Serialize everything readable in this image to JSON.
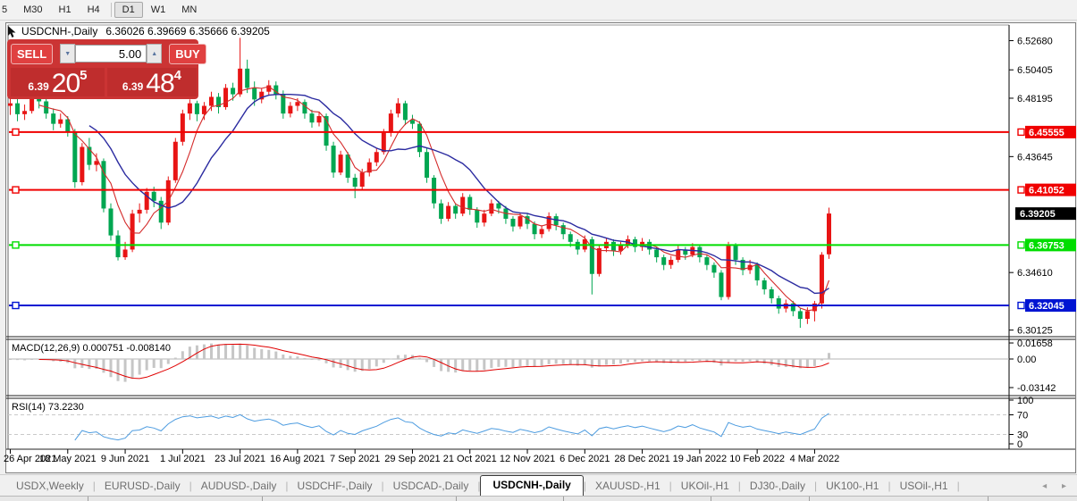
{
  "toolbar": {
    "timeframes": [
      "5",
      "M30",
      "H1",
      "H4",
      "D1",
      "W1",
      "MN"
    ],
    "active": "D1"
  },
  "chart": {
    "title": "USDCNH-,Daily",
    "ohlc_display": "6.36026 6.39669 6.35666 6.39205",
    "open": "6.36026",
    "high": "6.39669",
    "low": "6.35666",
    "close": "6.39205"
  },
  "trade_panel": {
    "sell_label": "SELL",
    "buy_label": "BUY",
    "volume": "5.00",
    "sell_price_prefix": "6.39",
    "sell_price_big": "20",
    "sell_price_sup": "5",
    "buy_price_prefix": "6.39",
    "buy_price_big": "48",
    "buy_price_sup": "4"
  },
  "icons": {
    "spinner_down": "▼",
    "spinner_up": "▲",
    "tab_scroll_left": "◂",
    "tab_scroll_right": "▸"
  },
  "colors": {
    "up": "#e81414",
    "down": "#00a651",
    "hline_red": "#f00000",
    "hline_green": "#00dd00",
    "hline_blue": "#0014d2",
    "current_tag": "#000000",
    "ma_fast": "#d42a2a",
    "ma_slow": "#2b2ba0",
    "macd_hist": "#c6c6c6",
    "macd_signal": "#e00000",
    "rsi": "#4d9ce0"
  },
  "chart_data": {
    "type": "candlestick",
    "symbol": "USDCNH-",
    "timeframe": "Daily",
    "price_range": {
      "top": 6.539,
      "bottom": 6.2968
    },
    "price_axis_ticks": [
      "6.52680",
      "6.50405",
      "6.48195",
      "6.43645",
      "6.34610",
      "6.30125"
    ],
    "x_labels": [
      "26 Apr 2021",
      "18 May 2021",
      "9 Jun 2021",
      "1 Jul 2021",
      "23 Jul 2021",
      "16 Aug 2021",
      "7 Sep 2021",
      "29 Sep 2021",
      "21 Oct 2021",
      "12 Nov 2021",
      "6 Dec 2021",
      "28 Dec 2021",
      "19 Jan 2022",
      "10 Feb 2022",
      "4 Mar 2022"
    ],
    "hlines": [
      {
        "price": "6.45555",
        "color_key": "hline_red"
      },
      {
        "price": "6.41052",
        "color_key": "hline_red"
      },
      {
        "price": "6.36753",
        "color_key": "hline_green"
      },
      {
        "price": "6.32045",
        "color_key": "hline_blue"
      }
    ],
    "current_price": "6.39205",
    "ma": [
      {
        "name": "ma-fast",
        "period": 5,
        "color_key": "ma_fast"
      },
      {
        "name": "ma-slow",
        "period": 12,
        "color_key": "ma_slow"
      }
    ],
    "macd": {
      "label": "MACD(12,26,9) 0.000751 -0.008140",
      "axis": [
        "0.01658",
        "0.00",
        "-0.03142"
      ],
      "axis_values": [
        0.01658,
        0,
        -0.03142
      ],
      "render_fast": 6,
      "render_slow": 13,
      "render_signal": 5
    },
    "rsi": {
      "label": "RSI(14) 73.2230",
      "axis": [
        "100",
        "70",
        "30",
        "0"
      ],
      "axis_values": [
        100,
        70,
        30,
        0
      ],
      "levels": [
        70,
        30
      ],
      "render_period": 9
    },
    "candles": [
      [
        6.476,
        6.4865,
        6.469,
        6.478
      ],
      [
        6.478,
        6.482,
        6.464,
        6.4695
      ],
      [
        6.4695,
        6.477,
        6.465,
        6.472
      ],
      [
        6.472,
        6.492,
        6.47,
        6.4838
      ],
      [
        6.4838,
        6.488,
        6.474,
        6.4795
      ],
      [
        6.4795,
        6.483,
        6.466,
        6.47
      ],
      [
        6.47,
        6.474,
        6.457,
        6.462
      ],
      [
        6.462,
        6.47,
        6.459,
        6.4655
      ],
      [
        6.4655,
        6.468,
        6.452,
        6.456
      ],
      [
        6.456,
        6.458,
        6.412,
        6.4165
      ],
      [
        6.4165,
        6.447,
        6.414,
        6.444
      ],
      [
        6.444,
        6.451,
        6.426,
        6.43
      ],
      [
        6.43,
        6.439,
        6.425,
        6.433
      ],
      [
        6.433,
        6.435,
        6.393,
        6.396
      ],
      [
        6.396,
        6.4,
        6.371,
        6.375
      ],
      [
        6.375,
        6.379,
        6.3555,
        6.358
      ],
      [
        6.358,
        6.37,
        6.356,
        6.364
      ],
      [
        6.364,
        6.395,
        6.362,
        6.392
      ],
      [
        6.392,
        6.4,
        6.385,
        6.395
      ],
      [
        6.395,
        6.412,
        6.392,
        6.409
      ],
      [
        6.409,
        6.413,
        6.397,
        6.402
      ],
      [
        6.402,
        6.405,
        6.38,
        6.385
      ],
      [
        6.385,
        6.421,
        6.383,
        6.418
      ],
      [
        6.418,
        6.451,
        6.416,
        6.448
      ],
      [
        6.448,
        6.473,
        6.445,
        6.47
      ],
      [
        6.47,
        6.481,
        6.465,
        6.478
      ],
      [
        6.478,
        6.48,
        6.464,
        6.4695
      ],
      [
        6.4695,
        6.479,
        6.465,
        6.476
      ],
      [
        6.476,
        6.487,
        6.472,
        6.483
      ],
      [
        6.483,
        6.486,
        6.47,
        6.475
      ],
      [
        6.475,
        6.493,
        6.473,
        6.49
      ],
      [
        6.49,
        6.494,
        6.48,
        6.485
      ],
      [
        6.485,
        6.529,
        6.483,
        6.505
      ],
      [
        6.505,
        6.512,
        6.486,
        6.49
      ],
      [
        6.49,
        6.495,
        6.476,
        6.481
      ],
      [
        6.481,
        6.49,
        6.478,
        6.487
      ],
      [
        6.487,
        6.496,
        6.484,
        6.492
      ],
      [
        6.492,
        6.495,
        6.481,
        6.485
      ],
      [
        6.485,
        6.488,
        6.466,
        6.47
      ],
      [
        6.47,
        6.479,
        6.467,
        6.476
      ],
      [
        6.476,
        6.482,
        6.472,
        6.479
      ],
      [
        6.479,
        6.481,
        6.466,
        6.47
      ],
      [
        6.47,
        6.473,
        6.459,
        6.463
      ],
      [
        6.463,
        6.471,
        6.46,
        6.468
      ],
      [
        6.468,
        6.47,
        6.441,
        6.445
      ],
      [
        6.445,
        6.448,
        6.42,
        6.424
      ],
      [
        6.424,
        6.441,
        6.422,
        6.438
      ],
      [
        6.438,
        6.44,
        6.416,
        6.42
      ],
      [
        6.42,
        6.423,
        6.404,
        6.413
      ],
      [
        6.413,
        6.427,
        6.41,
        6.424
      ],
      [
        6.424,
        6.435,
        6.421,
        6.432
      ],
      [
        6.432,
        6.443,
        6.429,
        6.44
      ],
      [
        6.44,
        6.458,
        6.438,
        6.455
      ],
      [
        6.455,
        6.473,
        6.452,
        6.47
      ],
      [
        6.47,
        6.482,
        6.467,
        6.478
      ],
      [
        6.478,
        6.48,
        6.461,
        6.465
      ],
      [
        6.465,
        6.469,
        6.458,
        6.462
      ],
      [
        6.462,
        6.464,
        6.436,
        6.44
      ],
      [
        6.44,
        6.443,
        6.416,
        6.42
      ],
      [
        6.42,
        6.422,
        6.396,
        6.4
      ],
      [
        6.4,
        6.403,
        6.384,
        6.388
      ],
      [
        6.388,
        6.401,
        6.386,
        6.398
      ],
      [
        6.398,
        6.4,
        6.388,
        6.392
      ],
      [
        6.392,
        6.408,
        6.39,
        6.405
      ],
      [
        6.405,
        6.407,
        6.391,
        6.395
      ],
      [
        6.395,
        6.397,
        6.381,
        6.385
      ],
      [
        6.385,
        6.395,
        6.382,
        6.392
      ],
      [
        6.392,
        6.403,
        6.39,
        6.4
      ],
      [
        6.4,
        6.402,
        6.392,
        6.396
      ],
      [
        6.396,
        6.398,
        6.384,
        6.388
      ],
      [
        6.388,
        6.39,
        6.378,
        6.382
      ],
      [
        6.382,
        6.393,
        6.38,
        6.39
      ],
      [
        6.39,
        6.392,
        6.38,
        6.384
      ],
      [
        6.384,
        6.386,
        6.372,
        6.376
      ],
      [
        6.376,
        6.383,
        6.373,
        6.38
      ],
      [
        6.38,
        6.393,
        6.378,
        6.39
      ],
      [
        6.39,
        6.392,
        6.379,
        6.383
      ],
      [
        6.383,
        6.385,
        6.372,
        6.376
      ],
      [
        6.376,
        6.378,
        6.366,
        6.37
      ],
      [
        6.37,
        6.372,
        6.36,
        6.364
      ],
      [
        6.364,
        6.375,
        6.362,
        6.372
      ],
      [
        6.372,
        6.374,
        6.329,
        6.345
      ],
      [
        6.345,
        6.368,
        6.343,
        6.365
      ],
      [
        6.365,
        6.373,
        6.362,
        6.37
      ],
      [
        6.37,
        6.372,
        6.359,
        6.363
      ],
      [
        6.363,
        6.37,
        6.36,
        6.368
      ],
      [
        6.368,
        6.375,
        6.365,
        6.372
      ],
      [
        6.372,
        6.374,
        6.362,
        6.366
      ],
      [
        6.366,
        6.373,
        6.363,
        6.37
      ],
      [
        6.37,
        6.372,
        6.36,
        6.364
      ],
      [
        6.364,
        6.366,
        6.354,
        6.358
      ],
      [
        6.358,
        6.36,
        6.348,
        6.352
      ],
      [
        6.352,
        6.359,
        6.349,
        6.356
      ],
      [
        6.356,
        6.367,
        6.354,
        6.364
      ],
      [
        6.364,
        6.366,
        6.356,
        6.36
      ],
      [
        6.36,
        6.369,
        6.358,
        6.366
      ],
      [
        6.366,
        6.368,
        6.354,
        6.358
      ],
      [
        6.358,
        6.36,
        6.348,
        6.352
      ],
      [
        6.352,
        6.354,
        6.342,
        6.346
      ],
      [
        6.346,
        6.348,
        6.3245,
        6.327
      ],
      [
        6.327,
        6.37,
        6.325,
        6.367
      ],
      [
        6.367,
        6.369,
        6.352,
        6.356
      ],
      [
        6.356,
        6.358,
        6.344,
        6.348
      ],
      [
        6.348,
        6.356,
        6.345,
        6.352
      ],
      [
        6.352,
        6.354,
        6.336,
        6.34
      ],
      [
        6.34,
        6.342,
        6.329,
        6.333
      ],
      [
        6.333,
        6.335,
        6.322,
        6.326
      ],
      [
        6.326,
        6.328,
        6.314,
        6.318
      ],
      [
        6.318,
        6.325,
        6.315,
        6.322
      ],
      [
        6.322,
        6.324,
        6.312,
        6.316
      ],
      [
        6.316,
        6.318,
        6.303,
        6.31
      ],
      [
        6.31,
        6.319,
        6.306,
        6.316
      ],
      [
        6.316,
        6.324,
        6.308,
        6.322
      ],
      [
        6.322,
        6.362,
        6.318,
        6.36
      ],
      [
        6.3603,
        6.3967,
        6.3567,
        6.3921
      ]
    ]
  },
  "tabs": {
    "items": [
      {
        "label": "USDX,Weekly",
        "active": false
      },
      {
        "label": "EURUSD-,Daily",
        "active": false
      },
      {
        "label": "AUDUSD-,Daily",
        "active": false
      },
      {
        "label": "USDCHF-,Daily",
        "active": false
      },
      {
        "label": "USDCAD-,Daily",
        "active": false
      },
      {
        "label": "USDCNH-,Daily",
        "active": true
      },
      {
        "label": "XAUUSD-,H1",
        "active": false
      },
      {
        "label": "UKOil-,H1",
        "active": false
      },
      {
        "label": "DJ30-,Daily",
        "active": false
      },
      {
        "label": "UK100-,H1",
        "active": false
      },
      {
        "label": "USOil-,H1",
        "active": false
      }
    ]
  }
}
